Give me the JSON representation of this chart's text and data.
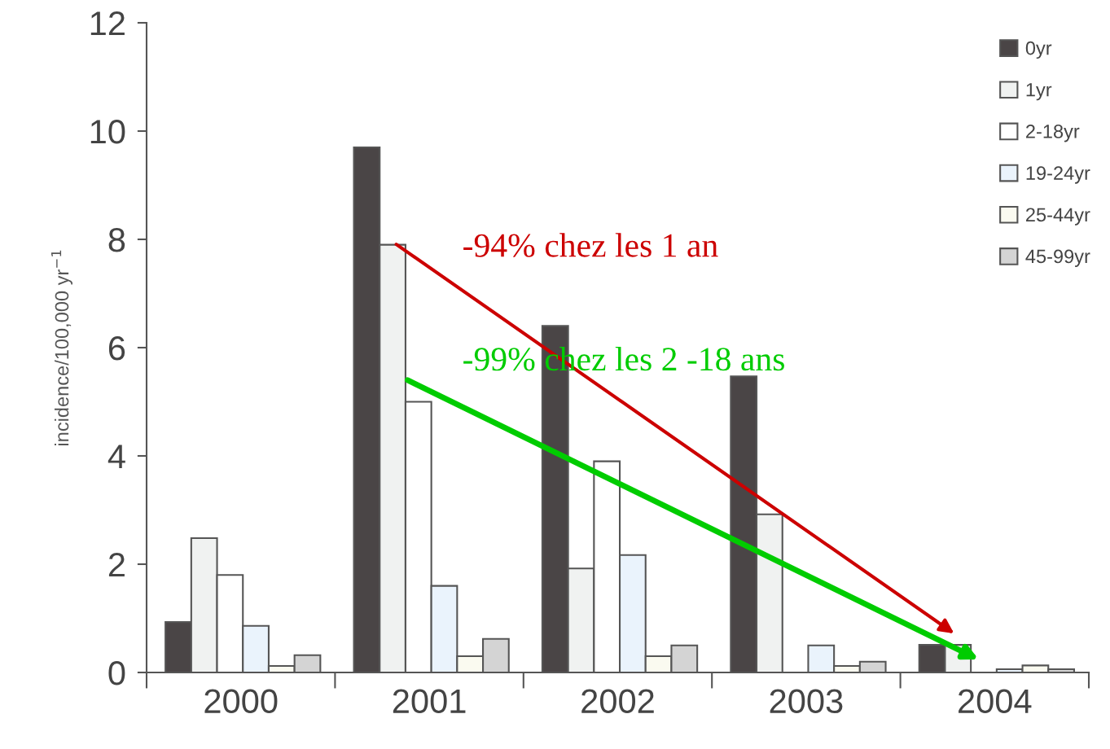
{
  "chart_data": {
    "type": "bar",
    "ylabel": "incidence/100,000 yr$^{−1}$",
    "categories": [
      "2000",
      "2001",
      "2002",
      "2003",
      "2004"
    ],
    "series": [
      {
        "name": "0yr",
        "color": "#4a4546",
        "values": [
          0.93,
          9.7,
          6.4,
          5.47,
          0.51
        ]
      },
      {
        "name": "1yr",
        "color": "#f0f2f1",
        "values": [
          2.48,
          7.9,
          1.92,
          2.92,
          0.51
        ]
      },
      {
        "name": "2-18yr",
        "color": "#ffffff",
        "values": [
          1.8,
          5.0,
          3.9,
          0,
          0
        ]
      },
      {
        "name": "19-24yr",
        "color": "#eaf3fc",
        "values": [
          0.86,
          1.6,
          2.17,
          0.5,
          0.06
        ]
      },
      {
        "name": "25-44yr",
        "color": "#fafaf0",
        "values": [
          0.12,
          0.3,
          0.3,
          0.12,
          0.13
        ]
      },
      {
        "name": "45-99yr",
        "color": "#d4d4d4",
        "values": [
          0.32,
          0.62,
          0.5,
          0.2,
          0.06
        ]
      }
    ],
    "ylim": [
      0,
      12
    ],
    "yticks": [
      0,
      2,
      4,
      6,
      8,
      10,
      12
    ],
    "grid": false,
    "legend": "top right",
    "annotations": [
      "-94% chez les 1 an",
      "-99% chez les 2 -18 ans"
    ]
  }
}
